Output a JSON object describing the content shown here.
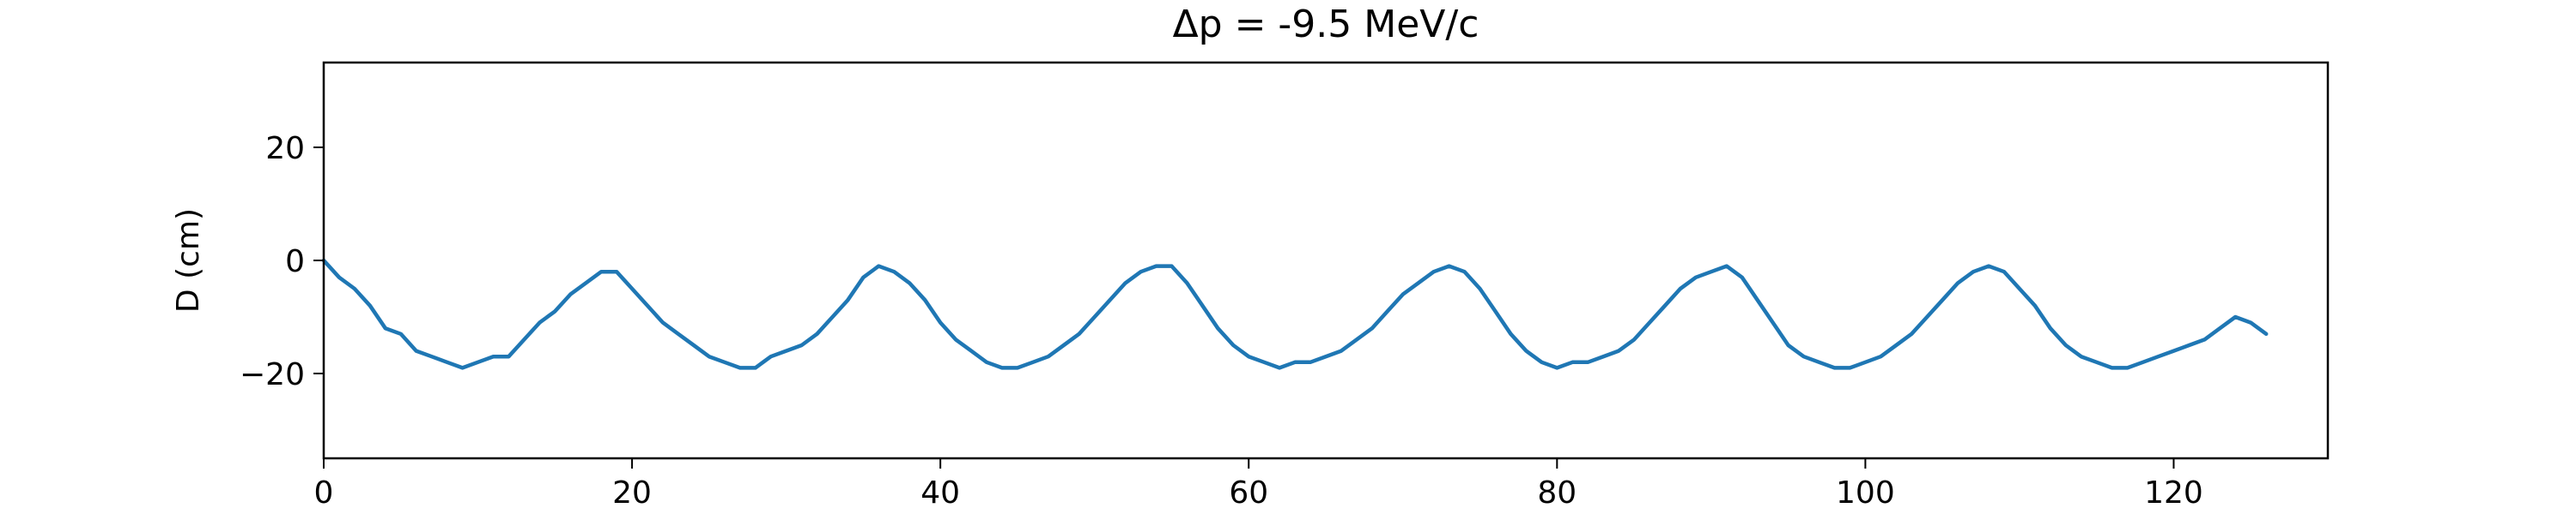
{
  "colors": {
    "series": "#1f77b4",
    "background": "#ffffff",
    "axis": "#000000"
  },
  "chart_data": {
    "type": "line",
    "title": "Δp = -9.5 MeV/c",
    "xlabel": "",
    "ylabel": "D (cm)",
    "xlim": [
      0,
      130
    ],
    "ylim": [
      -35,
      35
    ],
    "grid": false,
    "x_ticks": [
      0,
      20,
      40,
      60,
      80,
      100,
      120
    ],
    "x_tick_labels": [
      "0",
      "20",
      "40",
      "60",
      "80",
      "100",
      "120"
    ],
    "y_ticks": [
      20,
      0,
      -20
    ],
    "y_tick_labels": [
      "20",
      "0",
      "−20"
    ],
    "series": [
      {
        "x": [
          0,
          1,
          2,
          3,
          4,
          5,
          6,
          7,
          8,
          9,
          10,
          11,
          12,
          13,
          14,
          15,
          16,
          17,
          18,
          19,
          20,
          21,
          22,
          23,
          24,
          25,
          26,
          27,
          28,
          29,
          30,
          31,
          32,
          33,
          34,
          35,
          36,
          37,
          38,
          39,
          40,
          41,
          42,
          43,
          44,
          45,
          46,
          47,
          48,
          49,
          50,
          51,
          52,
          53,
          54,
          55,
          56,
          57,
          58,
          59,
          60,
          61,
          62,
          63,
          64,
          65,
          66,
          67,
          68,
          69,
          70,
          71,
          72,
          73,
          74,
          75,
          76,
          77,
          78,
          79,
          80,
          81,
          82,
          83,
          84,
          85,
          86,
          87,
          88,
          89,
          90,
          91,
          92,
          93,
          94,
          95,
          96,
          97,
          98,
          99,
          100,
          101,
          102,
          103,
          104,
          105,
          106,
          107,
          108,
          109,
          110,
          111,
          112,
          113,
          114,
          115,
          116,
          117,
          118,
          119,
          120,
          121,
          122,
          123,
          124,
          125,
          126
        ],
        "values": [
          0,
          -3,
          -5,
          -8,
          -12,
          -13,
          -16,
          -17,
          -18,
          -19,
          -18,
          -17,
          -17,
          -14,
          -11,
          -9,
          -6,
          -4,
          -2,
          -2,
          -5,
          -8,
          -11,
          -13,
          -15,
          -17,
          -18,
          -19,
          -19,
          -17,
          -16,
          -15,
          -13,
          -10,
          -7,
          -3,
          -1,
          -2,
          -4,
          -7,
          -11,
          -14,
          -16,
          -18,
          -19,
          -19,
          -18,
          -17,
          -15,
          -13,
          -10,
          -7,
          -4,
          -2,
          -1,
          -1,
          -4,
          -8,
          -12,
          -15,
          -17,
          -18,
          -19,
          -18,
          -18,
          -17,
          -16,
          -14,
          -12,
          -9,
          -6,
          -4,
          -2,
          -1,
          -2,
          -5,
          -9,
          -13,
          -16,
          -18,
          -19,
          -18,
          -18,
          -17,
          -16,
          -14,
          -11,
          -8,
          -5,
          -3,
          -2,
          -1,
          -3,
          -7,
          -11,
          -15,
          -17,
          -18,
          -19,
          -19,
          -18,
          -17,
          -15,
          -13,
          -10,
          -7,
          -4,
          -2,
          -1,
          -2,
          -5,
          -8,
          -12,
          -15,
          -17,
          -18,
          -19,
          -19,
          -18,
          -17,
          -16,
          -15,
          -14,
          -12,
          -10,
          -11,
          -13
        ]
      }
    ]
  }
}
